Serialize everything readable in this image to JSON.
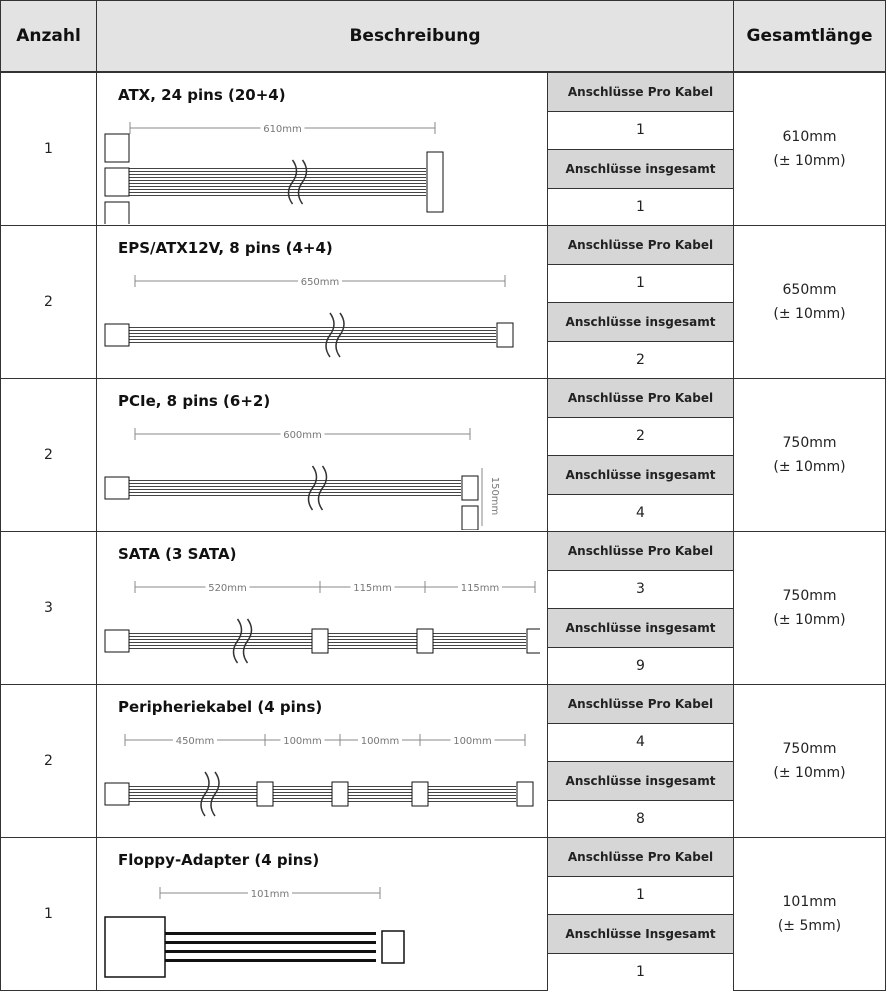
{
  "header": {
    "count": "Anzahl",
    "description": "Beschreibung",
    "length": "Gesamtlänge"
  },
  "rows": [
    {
      "count": "1",
      "title": "ATX, 24 pins (20+4)",
      "dimensions": [
        "610mm"
      ],
      "per_cable_label": "Anschlüsse Pro Kabel",
      "per_cable": "1",
      "total_label": "Anschlüsse insgesamt",
      "total": "1",
      "length": "610mm",
      "tolerance": "(± 10mm)"
    },
    {
      "count": "2",
      "title": "EPS/ATX12V, 8 pins (4+4)",
      "dimensions": [
        "650mm"
      ],
      "per_cable_label": "Anschlüsse Pro Kabel",
      "per_cable": "1",
      "total_label": "Anschlüsse insgesamt",
      "total": "2",
      "length": "650mm",
      "tolerance": "(± 10mm)"
    },
    {
      "count": "2",
      "title": "PCIe, 8 pins (6+2)",
      "dimensions": [
        "600mm",
        "150mm"
      ],
      "per_cable_label": "Anschlüsse Pro Kabel",
      "per_cable": "2",
      "total_label": "Anschlüsse insgesamt",
      "total": "4",
      "length": "750mm",
      "tolerance": "(± 10mm)"
    },
    {
      "count": "3",
      "title": "SATA (3 SATA)",
      "dimensions": [
        "520mm",
        "115mm",
        "115mm"
      ],
      "per_cable_label": "Anschlüsse Pro Kabel",
      "per_cable": "3",
      "total_label": "Anschlüsse insgesamt",
      "total": "9",
      "length": "750mm",
      "tolerance": "(± 10mm)"
    },
    {
      "count": "2",
      "title": "Peripheriekabel (4 pins)",
      "dimensions": [
        "450mm",
        "100mm",
        "100mm",
        "100mm"
      ],
      "per_cable_label": "Anschlüsse Pro Kabel",
      "per_cable": "4",
      "total_label": "Anschlüsse insgesamt",
      "total": "8",
      "length": "750mm",
      "tolerance": "(± 10mm)"
    },
    {
      "count": "1",
      "title": "Floppy-Adapter (4 pins)",
      "dimensions": [
        "101mm"
      ],
      "per_cable_label": "Anschlüsse Pro Kabel",
      "per_cable": "1",
      "total_label": "Anschlüsse Insgesamt",
      "total": "1",
      "length": "101mm",
      "tolerance": "(± 5mm)"
    }
  ]
}
